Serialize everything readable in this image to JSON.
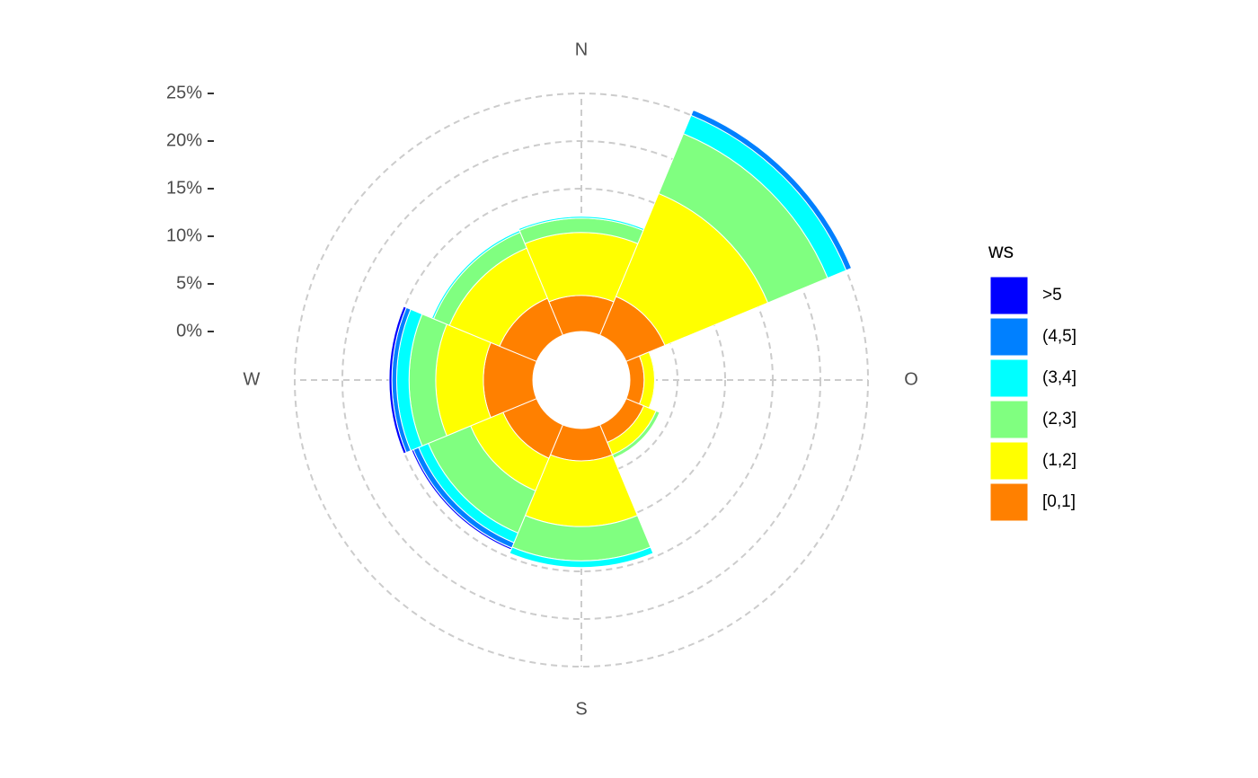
{
  "chart_data": {
    "type": "windrose",
    "categories": [
      "N",
      null,
      "O",
      null,
      "S",
      null,
      "W",
      null
    ],
    "legend_title": "ws",
    "series": [
      {
        "name": "[0,1]",
        "color": "#FF8000",
        "values": [
          3.8,
          4.4,
          1.5,
          2.0,
          3.4,
          3.8,
          5.2,
          4.2
        ]
      },
      {
        "name": "(1,2]",
        "color": "#FFFF00",
        "values": [
          6.6,
          11.7,
          1.1,
          1.4,
          6.9,
          3.7,
          5.0,
          5.7
        ]
      },
      {
        "name": "(2,3]",
        "color": "#80FF80",
        "values": [
          1.5,
          6.8,
          0.1,
          0.4,
          3.6,
          4.8,
          2.8,
          1.8
        ]
      },
      {
        "name": "(3,4]",
        "color": "#00FFFF",
        "values": [
          0.2,
          2.1,
          0,
          0,
          0.7,
          1.1,
          1.3,
          0.2
        ]
      },
      {
        "name": "(4,5]",
        "color": "#0080FF",
        "values": [
          0,
          0.6,
          0,
          0,
          0,
          0.6,
          0.5,
          0
        ]
      },
      {
        "name": ">5",
        "color": "#0000FF",
        "values": [
          0,
          0,
          0,
          0,
          0,
          0.2,
          0.3,
          0
        ]
      }
    ],
    "ylim": [
      0,
      25
    ],
    "yticks": [
      {
        "value": 0,
        "label": "0%"
      },
      {
        "value": 5,
        "label": "5%"
      },
      {
        "value": 10,
        "label": "10%"
      },
      {
        "value": 15,
        "label": "15%"
      },
      {
        "value": 20,
        "label": "20%"
      },
      {
        "value": 25,
        "label": "25%"
      }
    ],
    "grid": true
  }
}
